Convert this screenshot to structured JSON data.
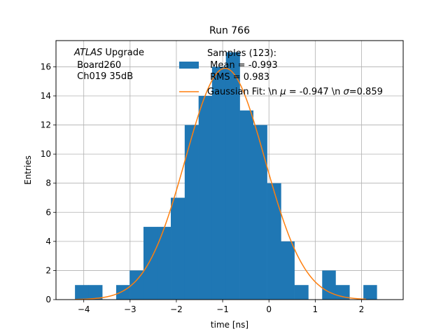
{
  "chart_data": {
    "type": "bar",
    "title": "Run 766",
    "xlabel": "time [ns]",
    "ylabel": "Entries",
    "xlim": [
      -4.6,
      2.9
    ],
    "ylim": [
      0,
      17.8
    ],
    "xticks": [
      -4,
      -3,
      -2,
      -1,
      0,
      1,
      2
    ],
    "yticks": [
      0,
      2,
      4,
      6,
      8,
      10,
      12,
      14,
      16
    ],
    "grid": true,
    "annotation": {
      "italic": "ATLAS",
      "line1_rest": " Upgrade",
      "line2": " Board260",
      "line3": " Ch019 35dB"
    },
    "histogram": {
      "bins": [
        {
          "x0": -4.19,
          "x1": -3.9,
          "count": 1
        },
        {
          "x0": -3.9,
          "x1": -3.6,
          "count": 1
        },
        {
          "x0": -3.6,
          "x1": -3.3,
          "count": 0
        },
        {
          "x0": -3.3,
          "x1": -3.01,
          "count": 1
        },
        {
          "x0": -3.01,
          "x1": -2.71,
          "count": 2
        },
        {
          "x0": -2.71,
          "x1": -2.41,
          "count": 5
        },
        {
          "x0": -2.41,
          "x1": -2.12,
          "count": 5
        },
        {
          "x0": -2.12,
          "x1": -1.82,
          "count": 7
        },
        {
          "x0": -1.82,
          "x1": -1.52,
          "count": 12
        },
        {
          "x0": -1.52,
          "x1": -1.23,
          "count": 14
        },
        {
          "x0": -1.23,
          "x1": -0.93,
          "count": 16
        },
        {
          "x0": -0.93,
          "x1": -0.63,
          "count": 17
        },
        {
          "x0": -0.63,
          "x1": -0.34,
          "count": 13
        },
        {
          "x0": -0.34,
          "x1": -0.04,
          "count": 12
        },
        {
          "x0": -0.04,
          "x1": 0.26,
          "count": 8
        },
        {
          "x0": 0.26,
          "x1": 0.55,
          "count": 4
        },
        {
          "x0": 0.55,
          "x1": 0.85,
          "count": 1
        },
        {
          "x0": 0.85,
          "x1": 1.15,
          "count": 0
        },
        {
          "x0": 1.15,
          "x1": 1.44,
          "count": 2
        },
        {
          "x0": 1.44,
          "x1": 1.74,
          "count": 1
        },
        {
          "x0": 1.74,
          "x1": 2.04,
          "count": 0
        },
        {
          "x0": 2.04,
          "x1": 2.33,
          "count": 1
        }
      ],
      "color": "#1f77b4",
      "legend_line1": "Samples (123):",
      "legend_line2": " Mean = -0.993",
      "legend_line3": " RMS = 0.983"
    },
    "fit": {
      "mu": -0.947,
      "sigma": 0.859,
      "amplitude": 15.9,
      "x_range": [
        -4.19,
        2.1
      ],
      "color": "#ff7f0e",
      "legend_prefix": "Gaussian Fit: \\n ",
      "legend_mu_symbol": "μ",
      "legend_mid": " = -0.947 \\n ",
      "legend_sigma_symbol": "σ",
      "legend_suffix": "=0.859"
    }
  }
}
